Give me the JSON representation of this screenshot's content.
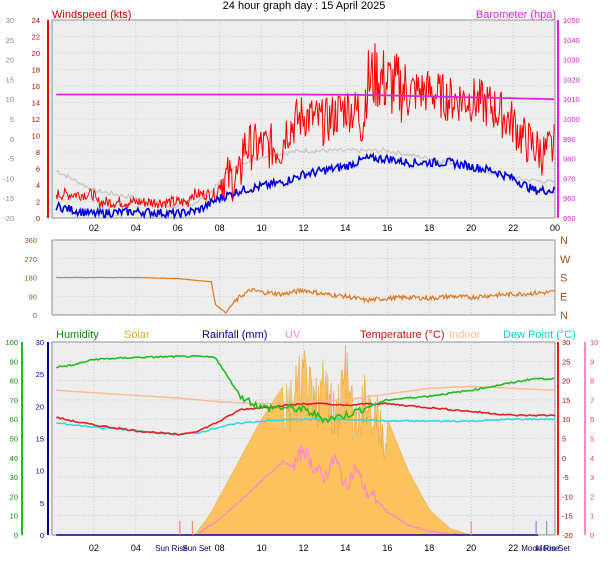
{
  "title": "24 hour graph day : 15 April 2025",
  "colors": {
    "windspeed": "#ff0000",
    "avg_wind": "#0000dd",
    "barometer": "#dd22dd",
    "pressure_trace": "#c8c8c8",
    "direction": "#e07820",
    "humidity": "#22bb22",
    "solar": "#ffbb44",
    "rainfall": "#000099",
    "uv": "#ff88cc",
    "temperature": "#dd2222",
    "indoor": "#ffbb99",
    "dew_point": "#22dddd",
    "grid": "#b8b8b8"
  },
  "x_ticks": [
    "02",
    "04",
    "06",
    "08",
    "10",
    "12",
    "14",
    "16",
    "18",
    "20",
    "22",
    "00"
  ],
  "chart_data": [
    {
      "type": "line",
      "name": "wind",
      "left_label": "Windspeed (kts)",
      "right_label": "Barometer (hpa)",
      "left_ticks": [
        "24",
        "22",
        "20",
        "18",
        "16",
        "14",
        "12",
        "10",
        "8",
        "6",
        "4",
        "2",
        "0"
      ],
      "outer_ticks": [
        "30",
        "25",
        "20",
        "15",
        "10",
        "5",
        "0",
        "-5",
        "-10",
        "-15",
        "-20"
      ],
      "right_ticks": [
        "1050",
        "1040",
        "1030",
        "1020",
        "1010",
        "1000",
        "990",
        "980",
        "970",
        "960",
        "950"
      ],
      "ylim": [
        0,
        25
      ],
      "ylim_right": [
        945,
        1050
      ],
      "x_hours": [
        0,
        24
      ],
      "gust": {
        "x": [
          0.2,
          2.0,
          2.1,
          4.0,
          4.1,
          6.5,
          6.6,
          7.9,
          8.0,
          9.0,
          9.1,
          11.0,
          11.1,
          12.0,
          13.0,
          14.0,
          14.9,
          15.0,
          15.5,
          16.0,
          17.0,
          18.0,
          19.0,
          20.0,
          21.0,
          22.0,
          22.5,
          23.0,
          23.5,
          24.0
        ],
        "y": [
          3,
          3,
          2,
          2,
          2,
          2,
          3,
          3,
          5,
          5,
          9,
          9,
          11,
          13,
          12,
          14,
          13,
          17,
          18,
          17,
          16,
          16,
          15,
          15,
          14,
          12,
          10,
          9,
          8,
          9
        ]
      },
      "average": {
        "x": [
          0.2,
          1.0,
          2.0,
          3.0,
          4.0,
          5.0,
          6.0,
          7.0,
          8.0,
          9.0,
          10.0,
          11.0,
          12.0,
          13.0,
          14.0,
          15.0,
          16.0,
          17.0,
          18.0,
          19.0,
          20.0,
          21.0,
          22.0,
          23.0,
          24.0
        ],
        "y": [
          1.5,
          1.0,
          0.5,
          0.7,
          0.8,
          0.7,
          0.5,
          1.0,
          2.5,
          3.5,
          4.0,
          4.5,
          5.5,
          6.0,
          6.5,
          7.5,
          7.5,
          7.0,
          7.0,
          7.0,
          6.5,
          6.0,
          5.0,
          3.5,
          3.5
        ]
      },
      "barometer": {
        "x": [
          0.2,
          4.0,
          8.0,
          12.0,
          14.5,
          16.0,
          20.0,
          24.0
        ],
        "y": [
          1010.5,
          1010.5,
          1010.5,
          1010.5,
          1010.3,
          1010.0,
          1009.0,
          1008.0
        ]
      },
      "trace": {
        "x": [
          0.2,
          2.0,
          4.0,
          5.5,
          6.5,
          7.5,
          8.5,
          9.5,
          10.5,
          12.0,
          14.0,
          16.0,
          18.0,
          20.0,
          22.0,
          24.0
        ],
        "y": [
          6,
          3.5,
          2.5,
          1.5,
          1.5,
          3,
          6,
          7.5,
          8,
          8.5,
          8.5,
          8.5,
          7.5,
          6.5,
          5,
          4.5
        ]
      }
    },
    {
      "type": "line",
      "name": "wind-direction",
      "left_ticks": [
        "360",
        "270",
        "180",
        "90",
        "0"
      ],
      "right_ticks": [
        "N",
        "W",
        "S",
        "E",
        "N"
      ],
      "ylim": [
        0,
        360
      ],
      "x_hours": [
        0,
        24
      ],
      "series": [
        {
          "x": [
            0.2,
            2.0,
            4.0,
            6.0,
            7.0,
            7.6,
            7.8,
            8.3,
            8.5,
            9.0,
            9.5,
            10.0,
            11.0,
            12.0,
            13.0,
            14.0,
            15.0,
            16.0,
            17.0,
            18.0,
            19.0,
            20.0,
            21.0,
            22.0,
            23.0,
            24.0
          ],
          "y": [
            180,
            180,
            180,
            175,
            165,
            160,
            50,
            10,
            40,
            90,
            120,
            110,
            100,
            120,
            100,
            90,
            70,
            80,
            85,
            80,
            90,
            85,
            95,
            100,
            105,
            110
          ]
        }
      ]
    },
    {
      "type": "line",
      "name": "temperature-humidity-solar",
      "labels": [
        "Humidity",
        "Solar",
        "Rainfall (mm)",
        "UV",
        "Temperature (°C)",
        "Indoor",
        "Dew Point (°C)"
      ],
      "humidity_ticks": [
        "100",
        "90",
        "80",
        "70",
        "60",
        "50",
        "40",
        "30",
        "20",
        "10",
        "0"
      ],
      "rain_ticks": [
        "30",
        "25",
        "20",
        "15",
        "10",
        "5",
        "0"
      ],
      "temp_ticks": [
        "30",
        "25",
        "20",
        "15",
        "10",
        "5",
        "0",
        "-5",
        "-10",
        "-15",
        "-20"
      ],
      "uv_ticks": [
        "10",
        "9",
        "8",
        "7",
        "6",
        "5",
        "4",
        "3",
        "2",
        "1",
        "0"
      ],
      "temp_lim": [
        -20,
        30
      ],
      "humidity_lim": [
        0,
        100
      ],
      "sun_labels": [
        "Sun Rise",
        "Sun Set"
      ],
      "moon_labels": [
        "Moon Rise",
        "Moon Set"
      ],
      "sun_marks_hours": [
        6.1,
        6.7,
        20.0
      ],
      "moon_marks_hours": [
        23.1,
        23.6
      ],
      "temperature": {
        "x": [
          0.2,
          1.0,
          2.0,
          3.0,
          4.0,
          5.0,
          6.0,
          7.0,
          8.0,
          9.0,
          10.0,
          11.0,
          12.0,
          13.0,
          14.0,
          15.0,
          16.0,
          17.0,
          18.0,
          19.0,
          20.0,
          21.0,
          22.0,
          23.0,
          24.0
        ],
        "y": [
          10.5,
          9.5,
          8.5,
          7.8,
          7.0,
          6.5,
          6.0,
          7.0,
          9.5,
          12.5,
          13.0,
          13.5,
          14.0,
          14.0,
          13.5,
          14.0,
          14.0,
          13.5,
          13.0,
          12.5,
          12.0,
          11.5,
          11.0,
          11.0,
          11.0
        ]
      },
      "dew_point": {
        "x": [
          0.2,
          2.0,
          4.0,
          6.0,
          7.0,
          8.0,
          9.0,
          10.0,
          12.0,
          14.0,
          16.0,
          18.0,
          20.0,
          22.0,
          24.0
        ],
        "y": [
          9.0,
          8.0,
          7.0,
          6.0,
          6.5,
          8.0,
          9.0,
          9.5,
          10.0,
          10.0,
          9.5,
          9.5,
          9.5,
          10.0,
          10.0
        ]
      },
      "humidity": {
        "x": [
          0.2,
          1.0,
          2.0,
          4.0,
          6.0,
          7.0,
          7.8,
          8.5,
          9.0,
          10.0,
          11.0,
          12.0,
          13.0,
          14.0,
          15.0,
          16.0,
          17.0,
          18.0,
          20.0,
          22.0,
          23.0,
          24.0
        ],
        "y": [
          87,
          88,
          91,
          92,
          92.5,
          92.5,
          92,
          80,
          72,
          66,
          66,
          65,
          60,
          62,
          66,
          70,
          71,
          72,
          75,
          79,
          81,
          81
        ]
      },
      "indoor": {
        "x": [
          0.2,
          3.0,
          6.0,
          8.0,
          10.0,
          12.0,
          14.0,
          16.0,
          18.0,
          20.0,
          22.0,
          24.0
        ],
        "y": [
          17.5,
          16.5,
          15.5,
          14.5,
          14.0,
          14.5,
          15.0,
          16.5,
          18.0,
          18.5,
          18.0,
          17.5
        ]
      },
      "solar": {
        "x": [
          6.8,
          7.5,
          8.0,
          9.0,
          10.0,
          11.0,
          11.5,
          12.0,
          12.5,
          13.0,
          13.5,
          14.0,
          14.5,
          15.0,
          15.5,
          16.0,
          17.0,
          18.0,
          19.0,
          20.0
        ],
        "y": [
          0,
          3,
          6,
          12,
          18,
          23,
          25,
          30,
          24,
          28,
          22,
          30,
          20,
          26,
          22,
          18,
          10,
          4,
          1,
          0
        ]
      },
      "uv": {
        "x": [
          7.0,
          8.0,
          9.0,
          10.0,
          11.0,
          11.5,
          12.0,
          12.5,
          13.0,
          13.5,
          14.0,
          14.5,
          15.0,
          15.5,
          16.0,
          17.0,
          18.0,
          19.0,
          19.5
        ],
        "y": [
          0.1,
          0.8,
          1.8,
          2.8,
          3.8,
          3.5,
          4.5,
          3.5,
          3.0,
          4.0,
          2.5,
          3.5,
          2.2,
          1.8,
          1.2,
          0.5,
          0.2,
          0.05,
          0
        ]
      },
      "rainfall": {
        "x": [
          0.2,
          24.0
        ],
        "y": [
          0,
          0
        ]
      }
    }
  ]
}
